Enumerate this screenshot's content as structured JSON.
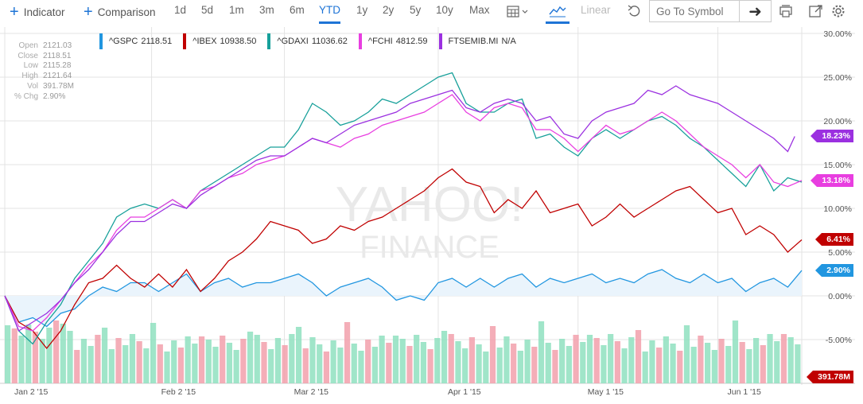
{
  "toolbar": {
    "indicator_label": "Indicator",
    "comparison_label": "Comparison",
    "ranges": [
      "1d",
      "5d",
      "1m",
      "3m",
      "6m",
      "YTD",
      "1y",
      "2y",
      "5y",
      "10y",
      "Max"
    ],
    "active_range": "YTD",
    "scale_label": "Linear",
    "symbol_placeholder": "Go To Symbol"
  },
  "ohlc": [
    {
      "k": "Open",
      "v": "2121.03"
    },
    {
      "k": "Close",
      "v": "2118.51"
    },
    {
      "k": "Low",
      "v": "2115.28"
    },
    {
      "k": "High",
      "v": "2121.64"
    },
    {
      "k": "Vol",
      "v": "391.78M"
    },
    {
      "k": "% Chg",
      "v": "2.90%"
    }
  ],
  "watermark": {
    "line1": "YAHOO!",
    "line2": "FINANCE"
  },
  "colors": {
    "gspc": "#2196e0",
    "ibex": "#c00000",
    "gdaxi": "#17a09a",
    "fchi": "#e83ee0",
    "ftsemib": "#9b30e0",
    "vol_up": "#8fe0c0",
    "vol_down": "#f2a0ab",
    "area": "#eaf4fc",
    "grid": "#e3e3e3"
  },
  "chart_data": {
    "type": "line",
    "title": "",
    "xlabel": "",
    "ylabel": "",
    "ylim": [
      -10,
      30
    ],
    "y_ticks": [
      {
        "v": 30,
        "label": "30.00%"
      },
      {
        "v": 25,
        "label": "25.00%"
      },
      {
        "v": 20,
        "label": "20.00%"
      },
      {
        "v": 15,
        "label": "15.00%"
      },
      {
        "v": 10,
        "label": "10.00%"
      },
      {
        "v": 5,
        "label": "5.00%"
      },
      {
        "v": 0,
        "label": "0.00%"
      },
      {
        "v": -5,
        "label": "-5.00%"
      }
    ],
    "x_ticks": [
      {
        "i": 0,
        "label": "Jan 2 '15"
      },
      {
        "i": 21,
        "label": "Feb 2 '15"
      },
      {
        "i": 40,
        "label": "Mar 2 '15"
      },
      {
        "i": 62,
        "label": "Apr 1 '15"
      },
      {
        "i": 82,
        "label": "May 1 '15"
      },
      {
        "i": 102,
        "label": "Jun 1 '15"
      }
    ],
    "n_points": 115,
    "series": [
      {
        "key": "gspc",
        "name": "^GSPC",
        "legend_value": "2118.51",
        "last_label": "2.90%",
        "end_value": 2.9,
        "anchors": [
          [
            0,
            0
          ],
          [
            2,
            -3
          ],
          [
            4,
            -2.5
          ],
          [
            6,
            -3.5
          ],
          [
            8,
            -2
          ],
          [
            10,
            -1.5
          ],
          [
            12,
            0
          ],
          [
            14,
            1
          ],
          [
            16,
            0.5
          ],
          [
            18,
            1.5
          ],
          [
            20,
            1.5
          ],
          [
            22,
            0.5
          ],
          [
            24,
            1.5
          ],
          [
            26,
            2.5
          ],
          [
            28,
            0.5
          ],
          [
            30,
            1.5
          ],
          [
            32,
            2
          ],
          [
            34,
            1
          ],
          [
            36,
            1.5
          ],
          [
            38,
            1.5
          ],
          [
            40,
            2
          ],
          [
            42,
            2.5
          ],
          [
            44,
            1.5
          ],
          [
            46,
            0
          ],
          [
            48,
            1
          ],
          [
            50,
            1.5
          ],
          [
            52,
            2
          ],
          [
            54,
            1
          ],
          [
            56,
            -0.5
          ],
          [
            58,
            0
          ],
          [
            60,
            -0.5
          ],
          [
            62,
            1.5
          ],
          [
            64,
            2
          ],
          [
            66,
            1
          ],
          [
            68,
            2
          ],
          [
            70,
            1
          ],
          [
            72,
            2
          ],
          [
            74,
            2.5
          ],
          [
            76,
            1
          ],
          [
            78,
            2
          ],
          [
            80,
            1.5
          ],
          [
            82,
            2
          ],
          [
            84,
            2.5
          ],
          [
            86,
            1.5
          ],
          [
            88,
            2
          ],
          [
            90,
            1.5
          ],
          [
            92,
            2.5
          ],
          [
            94,
            3
          ],
          [
            96,
            2
          ],
          [
            98,
            1.5
          ],
          [
            100,
            2.5
          ],
          [
            102,
            1.5
          ],
          [
            104,
            2
          ],
          [
            106,
            0.5
          ],
          [
            108,
            1.5
          ],
          [
            110,
            2
          ],
          [
            112,
            1
          ],
          [
            114,
            2.9
          ]
        ]
      },
      {
        "key": "ibex",
        "name": "^IBEX",
        "legend_value": "10938.50",
        "last_label": "6.41%",
        "end_value": 6.41,
        "anchors": [
          [
            0,
            0
          ],
          [
            2,
            -3
          ],
          [
            4,
            -4
          ],
          [
            6,
            -6
          ],
          [
            8,
            -4
          ],
          [
            10,
            -1
          ],
          [
            12,
            1.5
          ],
          [
            14,
            2
          ],
          [
            16,
            3.5
          ],
          [
            18,
            2
          ],
          [
            20,
            1
          ],
          [
            22,
            2.5
          ],
          [
            24,
            1
          ],
          [
            26,
            3
          ],
          [
            28,
            0.5
          ],
          [
            30,
            2
          ],
          [
            32,
            4
          ],
          [
            34,
            5
          ],
          [
            36,
            6.5
          ],
          [
            38,
            8.5
          ],
          [
            40,
            8
          ],
          [
            42,
            7.5
          ],
          [
            44,
            6
          ],
          [
            46,
            6.5
          ],
          [
            48,
            8
          ],
          [
            50,
            7.5
          ],
          [
            52,
            8.5
          ],
          [
            54,
            9
          ],
          [
            56,
            10
          ],
          [
            58,
            11
          ],
          [
            60,
            12
          ],
          [
            62,
            13.5
          ],
          [
            64,
            14.5
          ],
          [
            66,
            13
          ],
          [
            68,
            12.5
          ],
          [
            70,
            9.5
          ],
          [
            72,
            11
          ],
          [
            74,
            10
          ],
          [
            76,
            12
          ],
          [
            78,
            9.5
          ],
          [
            80,
            10
          ],
          [
            82,
            10.5
          ],
          [
            84,
            8
          ],
          [
            86,
            9
          ],
          [
            88,
            10.5
          ],
          [
            90,
            9
          ],
          [
            92,
            10
          ],
          [
            94,
            11
          ],
          [
            96,
            12
          ],
          [
            98,
            12.5
          ],
          [
            100,
            11
          ],
          [
            102,
            9.5
          ],
          [
            104,
            10
          ],
          [
            106,
            7
          ],
          [
            108,
            8
          ],
          [
            110,
            7
          ],
          [
            112,
            5
          ],
          [
            114,
            6.41
          ]
        ]
      },
      {
        "key": "gdaxi",
        "name": "^GDAXI",
        "legend_value": "11036.62",
        "last_label": "",
        "end_value": 13.0,
        "anchors": [
          [
            0,
            0
          ],
          [
            2,
            -4
          ],
          [
            4,
            -5.5
          ],
          [
            6,
            -3
          ],
          [
            8,
            -1
          ],
          [
            10,
            2
          ],
          [
            12,
            4
          ],
          [
            14,
            6
          ],
          [
            16,
            9
          ],
          [
            18,
            10
          ],
          [
            20,
            10.5
          ],
          [
            22,
            10
          ],
          [
            24,
            11
          ],
          [
            26,
            10
          ],
          [
            28,
            12
          ],
          [
            30,
            13
          ],
          [
            32,
            14
          ],
          [
            34,
            15
          ],
          [
            36,
            16
          ],
          [
            38,
            17
          ],
          [
            40,
            17
          ],
          [
            42,
            19
          ],
          [
            44,
            22
          ],
          [
            46,
            21
          ],
          [
            48,
            19.5
          ],
          [
            50,
            20
          ],
          [
            52,
            21
          ],
          [
            54,
            22.5
          ],
          [
            56,
            22
          ],
          [
            58,
            23
          ],
          [
            60,
            24
          ],
          [
            62,
            25
          ],
          [
            64,
            25.5
          ],
          [
            66,
            22
          ],
          [
            68,
            21
          ],
          [
            70,
            21
          ],
          [
            72,
            22
          ],
          [
            74,
            22.5
          ],
          [
            76,
            18
          ],
          [
            78,
            18.5
          ],
          [
            80,
            17
          ],
          [
            82,
            16
          ],
          [
            84,
            18
          ],
          [
            86,
            19
          ],
          [
            88,
            18
          ],
          [
            90,
            19
          ],
          [
            92,
            20
          ],
          [
            94,
            20.5
          ],
          [
            96,
            19.5
          ],
          [
            98,
            18
          ],
          [
            100,
            17
          ],
          [
            102,
            15.5
          ],
          [
            104,
            14
          ],
          [
            106,
            12.5
          ],
          [
            108,
            15
          ],
          [
            110,
            12
          ],
          [
            112,
            13.5
          ],
          [
            114,
            13
          ]
        ]
      },
      {
        "key": "fchi",
        "name": "^FCHI",
        "legend_value": "4812.59",
        "last_label": "13.18%",
        "end_value": 13.18,
        "anchors": [
          [
            0,
            0
          ],
          [
            2,
            -3.5
          ],
          [
            4,
            -4
          ],
          [
            6,
            -2.5
          ],
          [
            8,
            -0.5
          ],
          [
            10,
            1.5
          ],
          [
            12,
            3.5
          ],
          [
            14,
            5
          ],
          [
            16,
            7.5
          ],
          [
            18,
            9
          ],
          [
            20,
            9
          ],
          [
            22,
            10
          ],
          [
            24,
            11
          ],
          [
            26,
            10
          ],
          [
            28,
            12
          ],
          [
            30,
            12.5
          ],
          [
            32,
            13.5
          ],
          [
            34,
            14
          ],
          [
            36,
            15
          ],
          [
            38,
            15.5
          ],
          [
            40,
            16
          ],
          [
            42,
            17
          ],
          [
            44,
            18
          ],
          [
            46,
            17.5
          ],
          [
            48,
            17
          ],
          [
            50,
            18
          ],
          [
            52,
            18.5
          ],
          [
            54,
            19.5
          ],
          [
            56,
            20
          ],
          [
            58,
            20.5
          ],
          [
            60,
            21
          ],
          [
            62,
            22
          ],
          [
            64,
            23
          ],
          [
            66,
            21
          ],
          [
            68,
            20
          ],
          [
            70,
            21.5
          ],
          [
            72,
            22
          ],
          [
            74,
            21.5
          ],
          [
            76,
            19
          ],
          [
            78,
            19
          ],
          [
            80,
            18
          ],
          [
            82,
            16.5
          ],
          [
            84,
            18
          ],
          [
            86,
            19.5
          ],
          [
            88,
            18.5
          ],
          [
            90,
            19
          ],
          [
            92,
            20
          ],
          [
            94,
            21
          ],
          [
            96,
            20
          ],
          [
            98,
            18.5
          ],
          [
            100,
            17
          ],
          [
            102,
            16
          ],
          [
            104,
            15
          ],
          [
            106,
            13.5
          ],
          [
            108,
            15
          ],
          [
            110,
            13
          ],
          [
            112,
            12.5
          ],
          [
            114,
            13.18
          ]
        ]
      },
      {
        "key": "ftsemib",
        "name": "FTSEMIB.MI",
        "legend_value": "N/A",
        "last_label": "18.23%",
        "end_value": 18.23,
        "anchors": [
          [
            0,
            0
          ],
          [
            2,
            -4
          ],
          [
            4,
            -3
          ],
          [
            6,
            -2
          ],
          [
            8,
            -0.5
          ],
          [
            10,
            1.5
          ],
          [
            12,
            3
          ],
          [
            14,
            5
          ],
          [
            16,
            7
          ],
          [
            18,
            8.5
          ],
          [
            20,
            8.5
          ],
          [
            22,
            9.5
          ],
          [
            24,
            10.5
          ],
          [
            26,
            10
          ],
          [
            28,
            11.5
          ],
          [
            30,
            12.5
          ],
          [
            32,
            13.5
          ],
          [
            34,
            14.5
          ],
          [
            36,
            15.5
          ],
          [
            38,
            16
          ],
          [
            40,
            16
          ],
          [
            42,
            17
          ],
          [
            44,
            18
          ],
          [
            46,
            17.5
          ],
          [
            48,
            18.5
          ],
          [
            50,
            19.5
          ],
          [
            52,
            20
          ],
          [
            54,
            20.5
          ],
          [
            56,
            21
          ],
          [
            58,
            22
          ],
          [
            60,
            22.5
          ],
          [
            62,
            23
          ],
          [
            64,
            23.5
          ],
          [
            66,
            21.5
          ],
          [
            68,
            21
          ],
          [
            70,
            22
          ],
          [
            72,
            22.5
          ],
          [
            74,
            22
          ],
          [
            76,
            20
          ],
          [
            78,
            20.5
          ],
          [
            80,
            18.5
          ],
          [
            82,
            18
          ],
          [
            84,
            20
          ],
          [
            86,
            21
          ],
          [
            88,
            21.5
          ],
          [
            90,
            22
          ],
          [
            92,
            23.5
          ],
          [
            94,
            23
          ],
          [
            96,
            24
          ],
          [
            98,
            23
          ],
          [
            100,
            22.5
          ],
          [
            102,
            22
          ],
          [
            104,
            21
          ],
          [
            106,
            20
          ],
          [
            108,
            19
          ],
          [
            110,
            18
          ],
          [
            112,
            16.5
          ],
          [
            113,
            18.23
          ]
        ]
      }
    ],
    "last_volume_label": "391.78M",
    "volume": {
      "count": 115,
      "max_height_fraction": 1.0
    }
  }
}
